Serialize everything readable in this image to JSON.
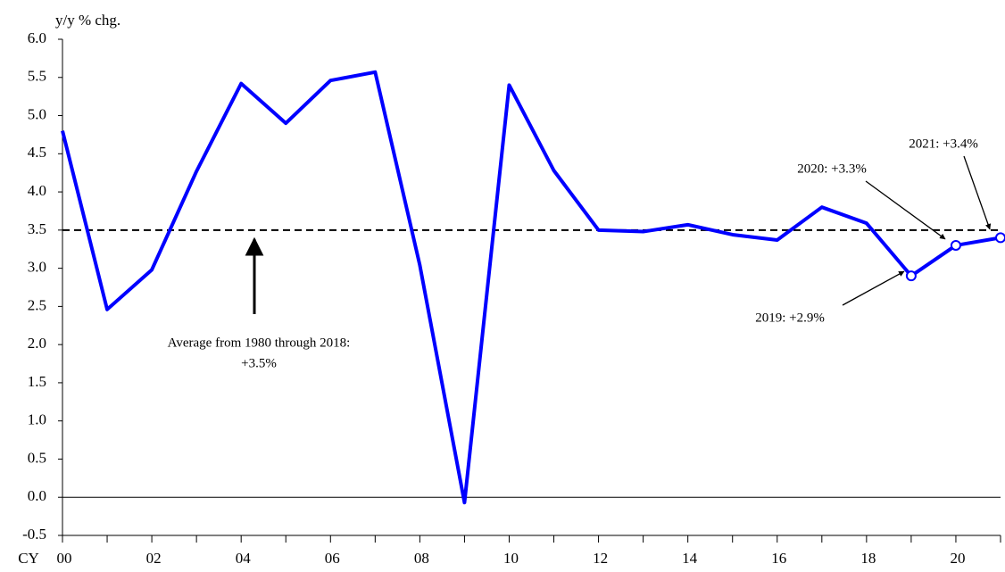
{
  "chart_data": {
    "type": "line",
    "y_axis_label": "y/y % chg.",
    "x_prefix": "CY",
    "categories": [
      "00",
      null,
      "02",
      null,
      "04",
      null,
      "06",
      null,
      "08",
      null,
      "10",
      null,
      "12",
      null,
      "14",
      null,
      "16",
      null,
      "18",
      null,
      "20",
      null
    ],
    "series": [
      {
        "color": "#0000ff",
        "values": [
          4.8,
          2.46,
          2.98,
          4.27,
          5.42,
          4.9,
          5.46,
          5.57,
          3.04,
          -0.07,
          5.4,
          4.28,
          3.5,
          3.48,
          3.57,
          3.44,
          3.37,
          3.8,
          3.59,
          2.9,
          3.3,
          3.4
        ]
      }
    ],
    "ylim": [
      -0.5,
      6
    ],
    "yticks": [
      {
        "value": -0.5,
        "label": "-0.5"
      },
      {
        "value": 0,
        "label": "0.0"
      },
      {
        "value": 0.5,
        "label": "0.5"
      },
      {
        "value": 1,
        "label": "1.0"
      },
      {
        "value": 1.5,
        "label": "1.5"
      },
      {
        "value": 2,
        "label": "2.0"
      },
      {
        "value": 2.5,
        "label": "2.5"
      },
      {
        "value": 3,
        "label": "3.0"
      },
      {
        "value": 3.5,
        "label": "3.5"
      },
      {
        "value": 4,
        "label": "4.0"
      },
      {
        "value": 4.5,
        "label": "4.5"
      },
      {
        "value": 5,
        "label": "5.0"
      },
      {
        "value": 5.5,
        "label": "5.5"
      },
      {
        "value": 6,
        "label": "6.0"
      }
    ],
    "reference_line": {
      "value": 3.5,
      "label": [
        "Average from 1980 through 2018:",
        "+3.5%"
      ]
    },
    "annotations": [
      "2019: +2.9%",
      "2020: +3.3%",
      "2021: +3.4%"
    ]
  }
}
